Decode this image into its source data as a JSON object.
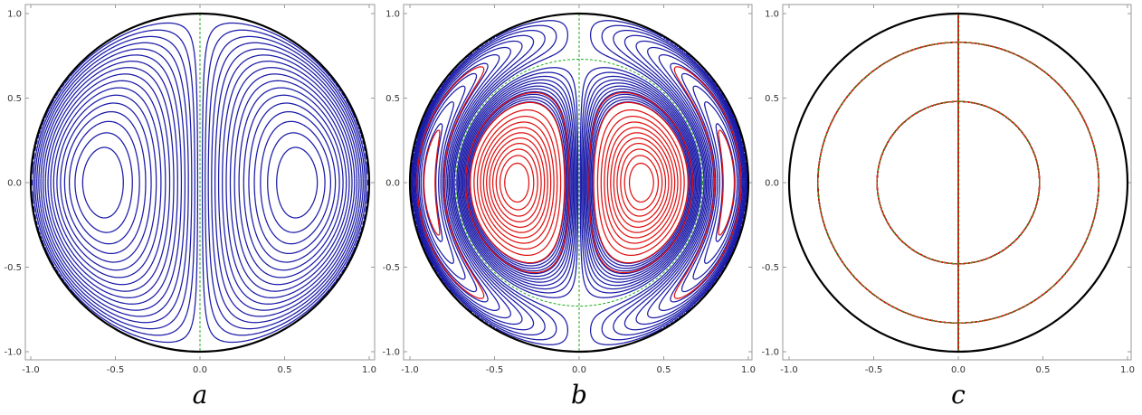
{
  "panels": [
    {
      "caption": "a",
      "kind": "uniform",
      "x_ticks": [
        "-1.0",
        "-0.5",
        "0.0",
        "0.5",
        "1.0"
      ],
      "y_ticks": [
        "1.0",
        "0.5",
        "0.0",
        "-0.5",
        "-1.0"
      ]
    },
    {
      "caption": "b",
      "kind": "one_ring",
      "inner_radius": 0.73,
      "x_ticks": [
        "-1.0",
        "-0.5",
        "0.0",
        "0.5",
        "1.0"
      ],
      "y_ticks": [
        "1.0",
        "0.5",
        "0.0",
        "-0.5",
        "-1.0"
      ]
    },
    {
      "caption": "c",
      "kind": "two_ring",
      "inner_radius": 0.48,
      "outer_radius": 0.83,
      "x_ticks": [
        "-1.0",
        "-0.5",
        "0.0",
        "0.5",
        "1.0"
      ],
      "y_ticks": [
        "1.0",
        "0.5",
        "0.0",
        "-0.5",
        "-1.0"
      ]
    }
  ],
  "colors": {
    "outer_stream": "#1a1aa8",
    "inner_vortex": "#e01010",
    "center_vortex": "#1f1fc8",
    "separatrix": "#22aa22",
    "boundary": "#000000",
    "frame": "#9a9a9a"
  }
}
